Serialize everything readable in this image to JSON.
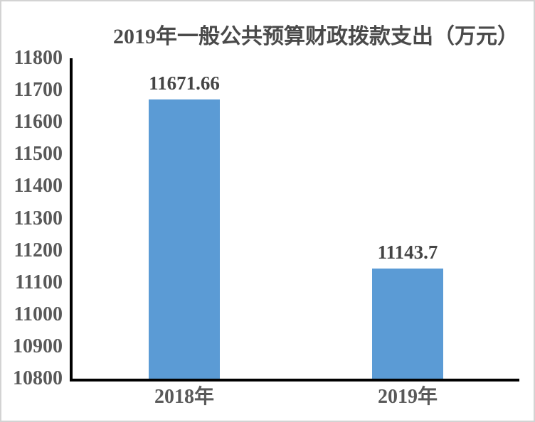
{
  "chart_data": {
    "type": "bar",
    "title": "2019年一般公共预算财政拨款支出（万元）",
    "categories": [
      "2018年",
      "2019年"
    ],
    "values": [
      11671.66,
      11143.7
    ],
    "value_labels": [
      "11671.66",
      "11143.7"
    ],
    "ylim": [
      10800,
      11800
    ],
    "yticks": [
      11800,
      11700,
      11600,
      11500,
      11400,
      11300,
      11200,
      11100,
      11000,
      10900,
      10800
    ],
    "xlabel": "",
    "ylabel": "",
    "grid": false,
    "legend": false,
    "bar_color": "#5B9BD5",
    "axis_color": "#000000",
    "tick_text_color": "#595959",
    "title_text_color": "#4a4a4a"
  }
}
